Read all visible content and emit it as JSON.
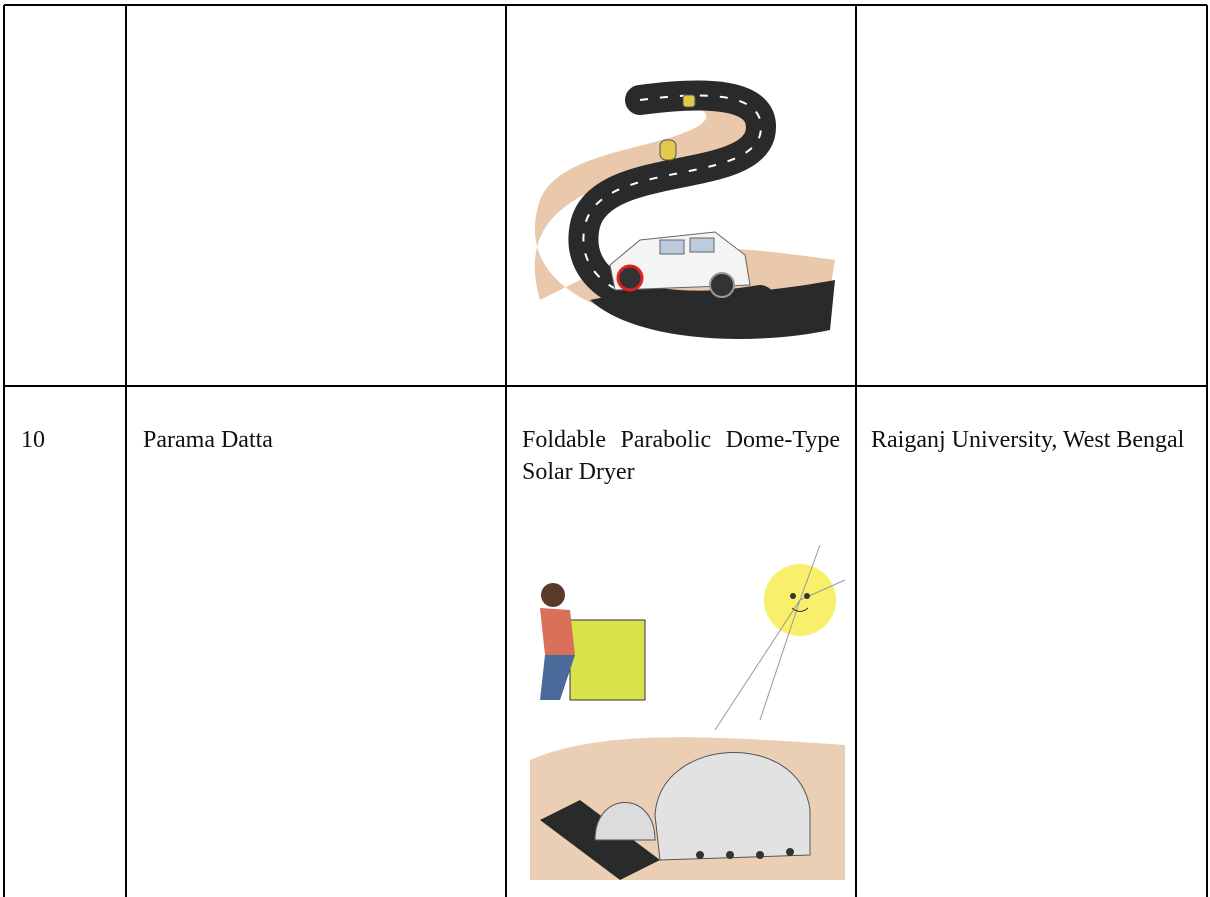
{
  "table": {
    "rows": [
      {
        "number": "10",
        "name": "Parama Datta",
        "innovation": "Foldable Parabolic Dome-Type Solar Dryer",
        "institution": "Raiganj University, West Bengal"
      }
    ]
  }
}
